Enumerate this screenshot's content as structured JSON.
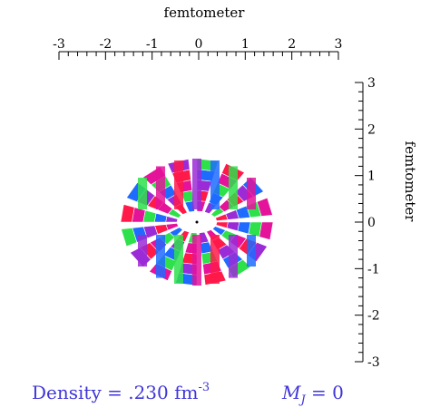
{
  "axes": {
    "top_title": "femtometer",
    "right_title": "femtometer",
    "top_ticks": [
      "-3",
      "-2",
      "-1",
      "0",
      "1",
      "2",
      "3"
    ],
    "right_ticks": [
      "3",
      "2",
      "1",
      "0",
      "-1",
      "-2",
      "-3"
    ]
  },
  "caption": {
    "density_prefix": "Density = .230 fm",
    "density_exponent": "-3",
    "mj_symbol": "M",
    "mj_subscript": "J",
    "mj_value": " = 0"
  },
  "torus": {
    "colors": [
      "#ff1a4a",
      "#9b2bd6",
      "#1f6bff",
      "#2ee04a",
      "#e4139a"
    ]
  }
}
